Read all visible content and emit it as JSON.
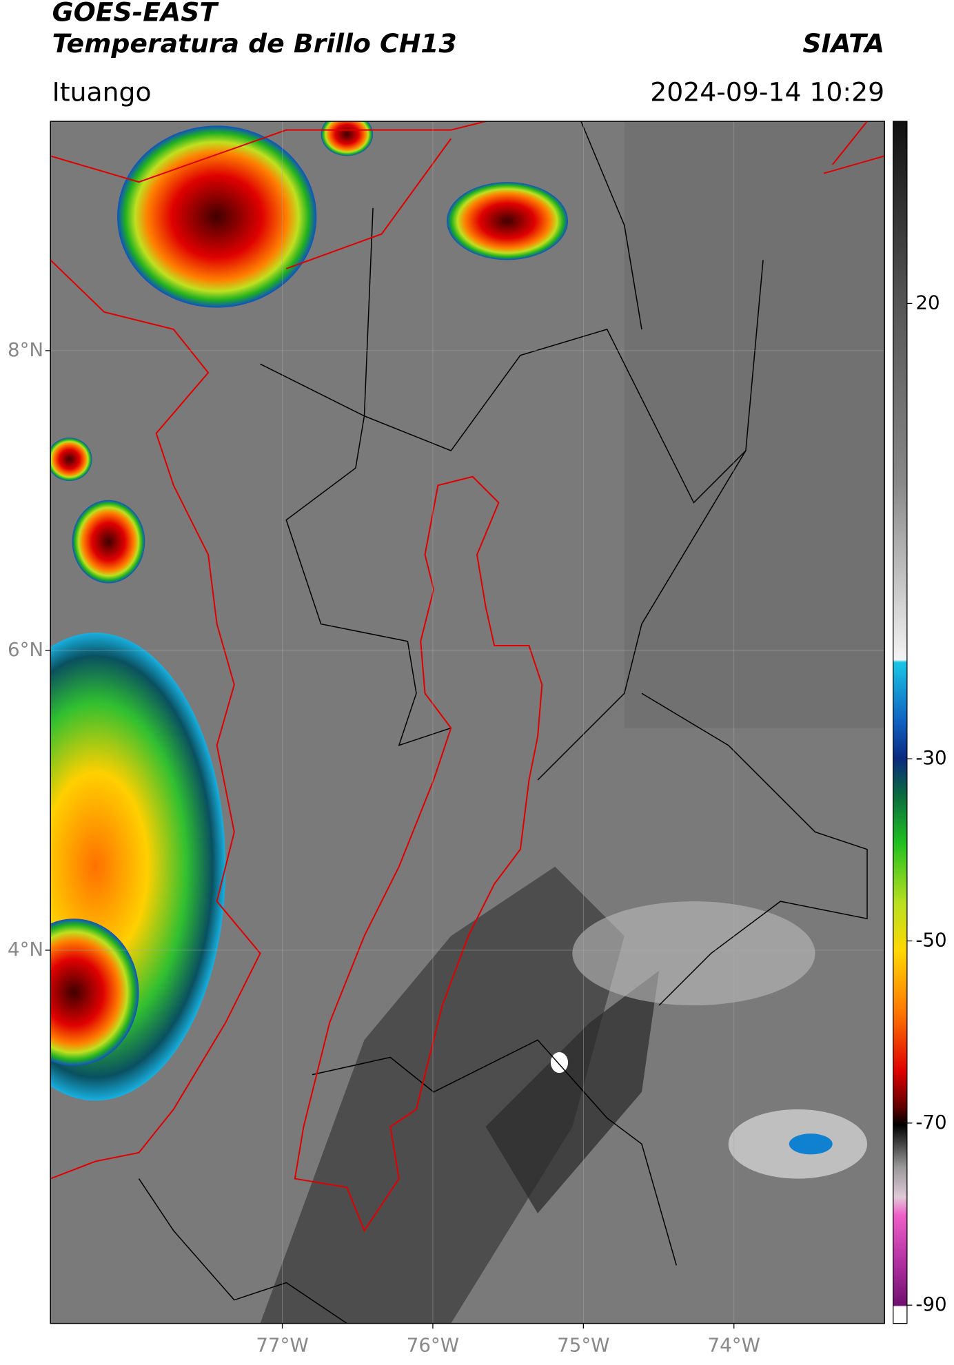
{
  "header": {
    "title": "GOES-EAST",
    "subtitle": "Temperatura de Brillo CH13",
    "source": "SIATA",
    "location": "Ituango",
    "datetime": "2024-09-14 10:29"
  },
  "map": {
    "xlim": [
      -78.54,
      -73.0
    ],
    "ylim": [
      1.51,
      9.53
    ],
    "xticks": [
      {
        "value": -77,
        "label": "77°W"
      },
      {
        "value": -76,
        "label": "76°W"
      },
      {
        "value": -75,
        "label": "75°W"
      },
      {
        "value": -74,
        "label": "74°W"
      }
    ],
    "yticks": [
      {
        "value": 8,
        "label": "8°N"
      },
      {
        "value": 6,
        "label": "6°N"
      },
      {
        "value": 4,
        "label": "4°N"
      }
    ],
    "grid": true
  },
  "colorbar": {
    "ylim": [
      -92,
      40
    ],
    "yticks": [
      20,
      -30,
      -50,
      -70,
      -90
    ]
  }
}
